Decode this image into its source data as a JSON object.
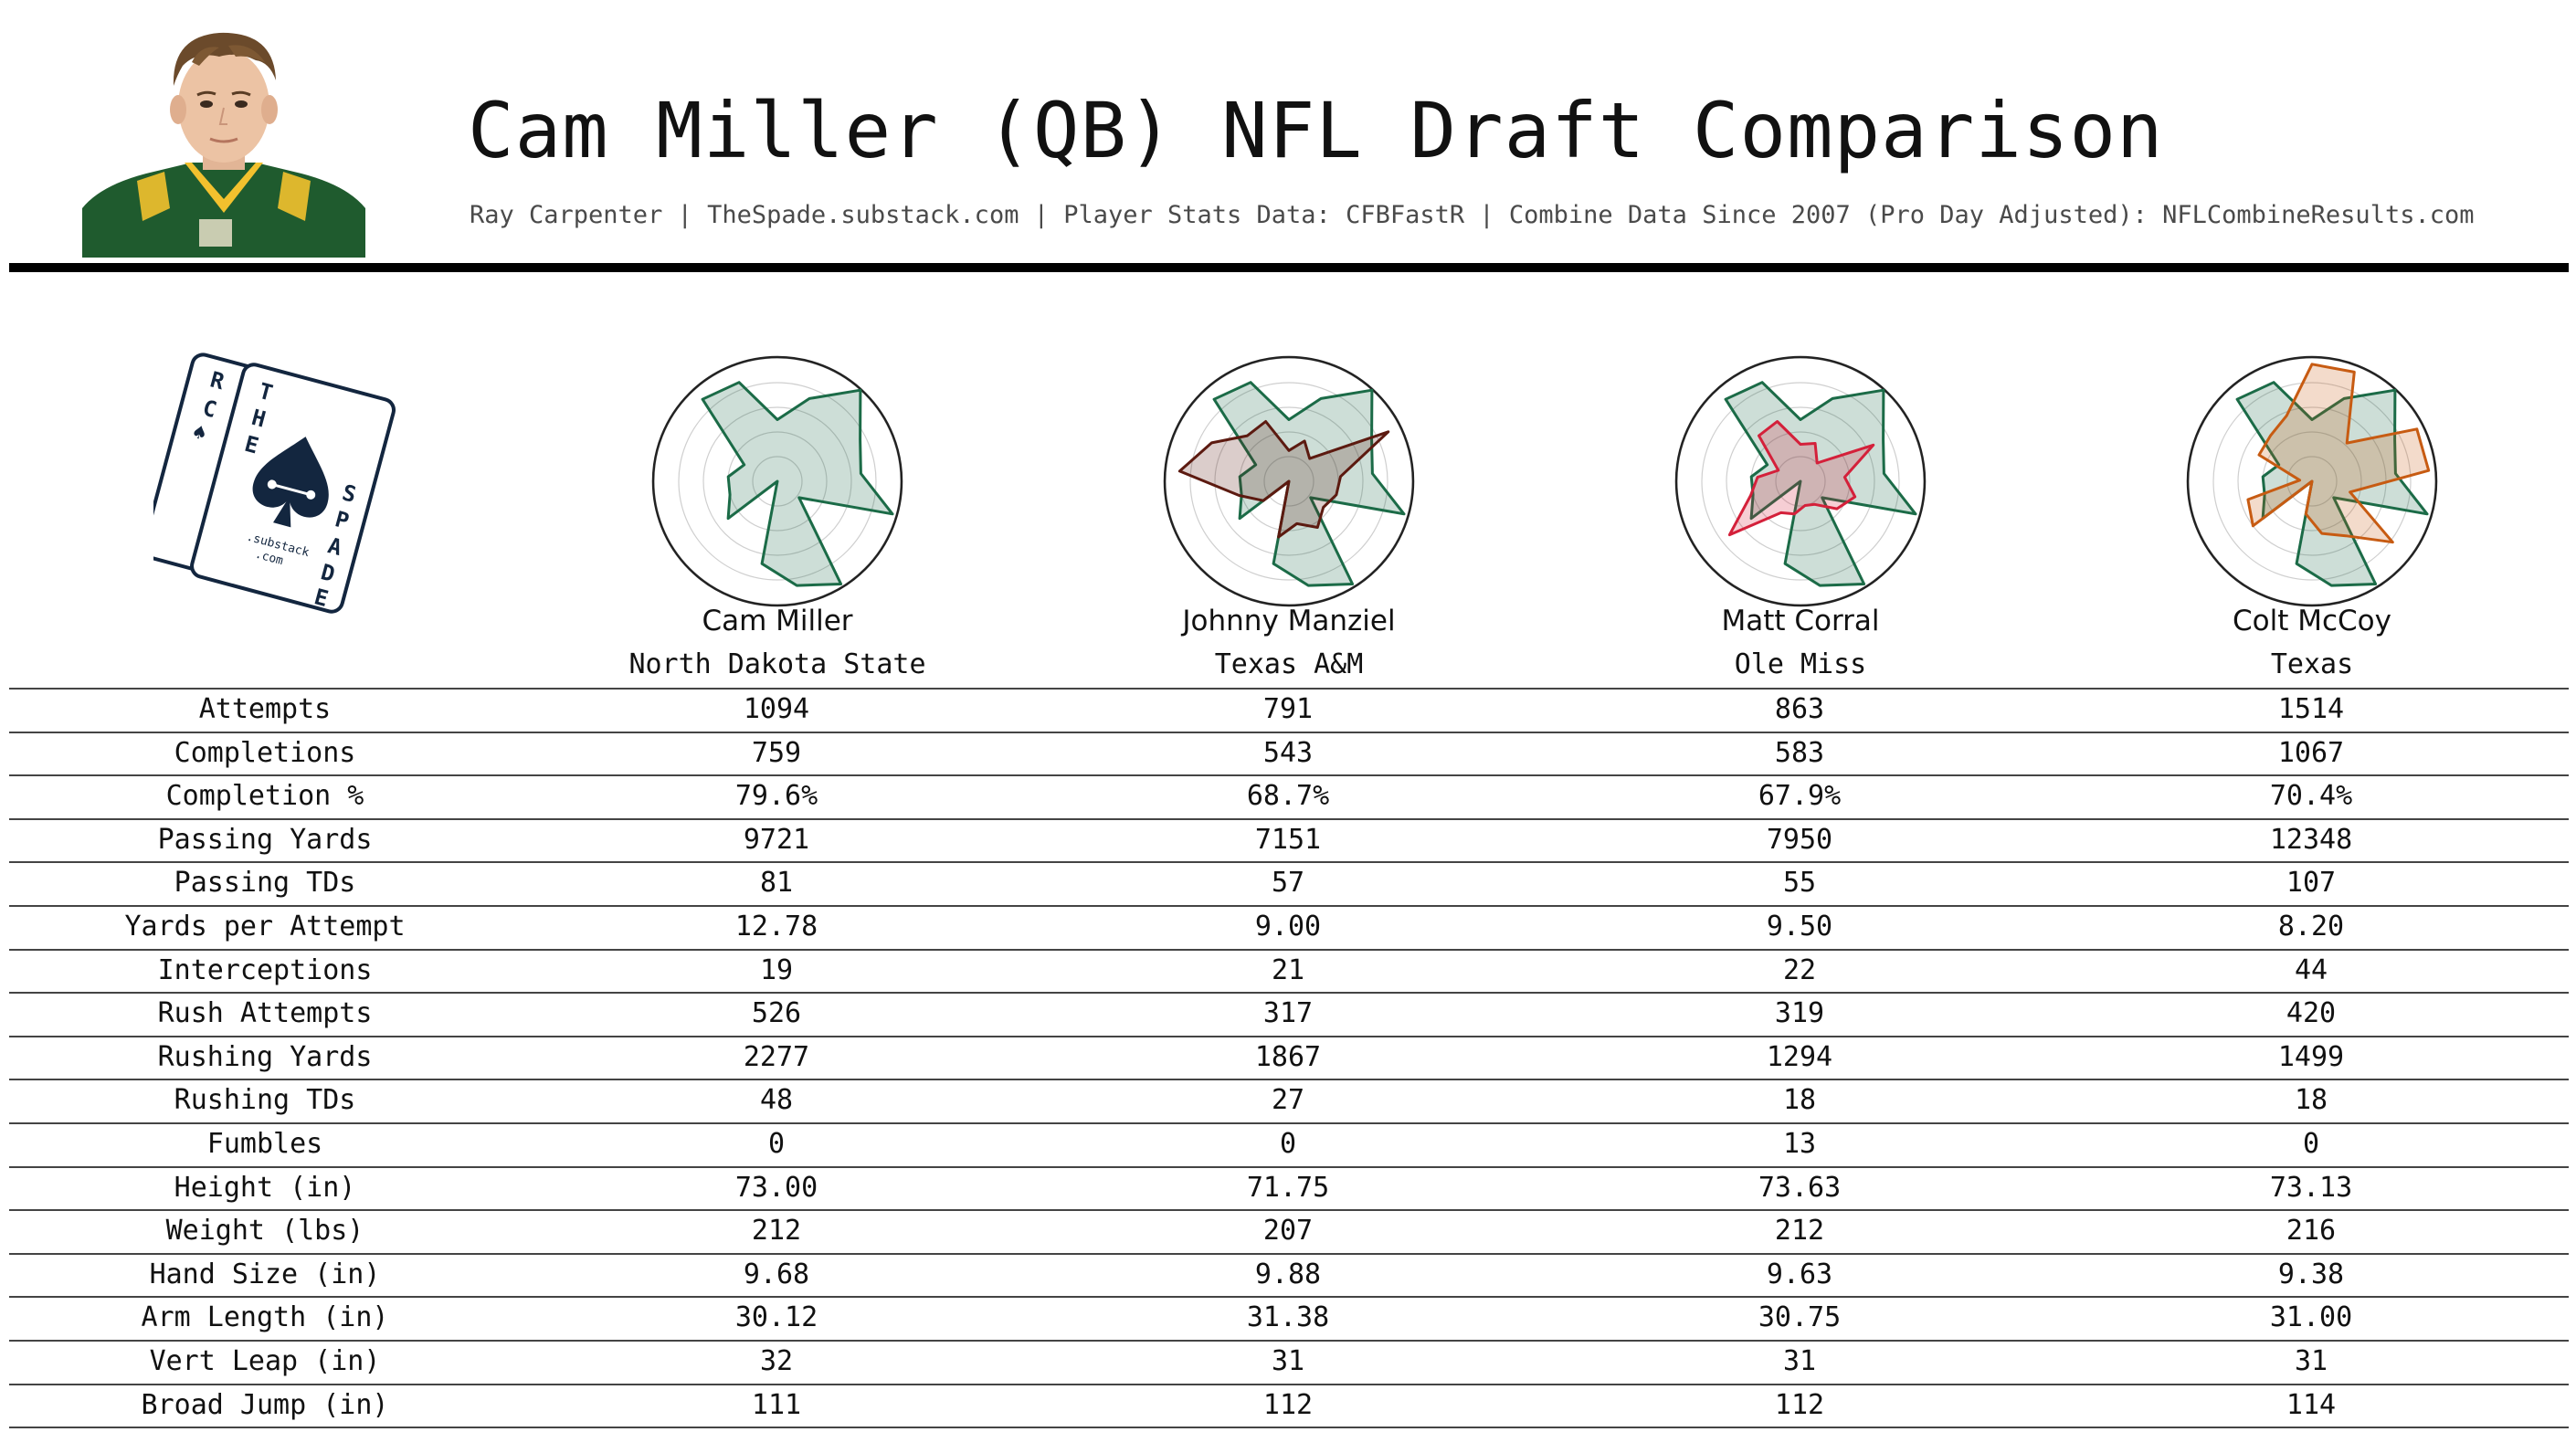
{
  "title": "Cam Miller (QB) NFL Draft Comparison",
  "subtitle": "Ray Carpenter | TheSpade.substack.com | Player Stats Data: CFBFastR | Combine Data Since 2007 (Pro Day Adjusted): NFLCombineResults.com",
  "logo": {
    "card_letters": [
      "R",
      "C",
      "T",
      "H",
      "E",
      "S",
      "P",
      "A",
      "D",
      "E"
    ],
    "tagline": ".substack",
    "tagline2": ".com"
  },
  "colors": {
    "cam_miller": "#1b6b47",
    "johnny_manziel": "#5c1a10",
    "matt_corral": "#d4203a",
    "colt_mccoy": "#c75b12",
    "logo_navy": "#13263f"
  },
  "players": [
    {
      "name": "Cam Miller",
      "school": "North Dakota State"
    },
    {
      "name": "Johnny Manziel",
      "school": "Texas A&M"
    },
    {
      "name": "Matt Corral",
      "school": "Ole Miss"
    },
    {
      "name": "Colt McCoy",
      "school": "Texas"
    }
  ],
  "table": {
    "rows": [
      {
        "label": "Attempts",
        "values": [
          "1094",
          "791",
          "863",
          "1514"
        ]
      },
      {
        "label": "Completions",
        "values": [
          "759",
          "543",
          "583",
          "1067"
        ]
      },
      {
        "label": "Completion %",
        "values": [
          "79.6%",
          "68.7%",
          "67.9%",
          "70.4%"
        ]
      },
      {
        "label": "Passing Yards",
        "values": [
          "9721",
          "7151",
          "7950",
          "12348"
        ]
      },
      {
        "label": "Passing TDs",
        "values": [
          "81",
          "57",
          "55",
          "107"
        ]
      },
      {
        "label": "Yards per Attempt",
        "values": [
          "12.78",
          "9.00",
          "9.50",
          "8.20"
        ]
      },
      {
        "label": "Interceptions",
        "values": [
          "19",
          "21",
          "22",
          "44"
        ]
      },
      {
        "label": "Rush Attempts",
        "values": [
          "526",
          "317",
          "319",
          "420"
        ]
      },
      {
        "label": "Rushing Yards",
        "values": [
          "2277",
          "1867",
          "1294",
          "1499"
        ]
      },
      {
        "label": "Rushing TDs",
        "values": [
          "48",
          "27",
          "18",
          "18"
        ]
      },
      {
        "label": "Fumbles",
        "values": [
          "0",
          "0",
          "13",
          "0"
        ]
      },
      {
        "label": "Height (in)",
        "values": [
          "73.00",
          "71.75",
          "73.63",
          "73.13"
        ]
      },
      {
        "label": "Weight (lbs)",
        "values": [
          "212",
          "207",
          "212",
          "216"
        ]
      },
      {
        "label": "Hand Size (in)",
        "values": [
          "9.68",
          "9.88",
          "9.63",
          "9.38"
        ]
      },
      {
        "label": "Arm Length (in)",
        "values": [
          "30.12",
          "31.38",
          "30.75",
          "31.00"
        ]
      },
      {
        "label": "Vert Leap (in)",
        "values": [
          "32",
          "31",
          "31",
          "31"
        ]
      },
      {
        "label": "Broad Jump (in)",
        "values": [
          "111",
          "112",
          "112",
          "114"
        ]
      }
    ]
  },
  "chart_data": {
    "type": "radar",
    "radial_max": 1.0,
    "rings": 5,
    "grid": true,
    "axes_count": 17,
    "series": [
      {
        "name": "Cam Miller",
        "color": "#1b6b47",
        "values": [
          0.5,
          0.72,
          1.0,
          0.75,
          0.68,
          0.97,
          0.22,
          0.98,
          0.86,
          0.68,
          0.0,
          0.5,
          0.4,
          0.4,
          0.3,
          0.9,
          0.86
        ]
      },
      {
        "name": "Johnny Manziel",
        "color": "#5c1a10",
        "values": [
          0.25,
          0.35,
          0.25,
          0.9,
          0.42,
          0.4,
          0.35,
          0.44,
          0.35,
          0.46,
          0.0,
          0.26,
          0.42,
          0.89,
          0.7,
          0.5,
          0.52
        ]
      },
      {
        "name": "Matt Corral",
        "color": "#d4203a",
        "values": [
          0.3,
          0.33,
          0.2,
          0.66,
          0.36,
          0.46,
          0.37,
          0.22,
          0.2,
          0.27,
          0.3,
          0.72,
          0.42,
          0.35,
          0.2,
          0.5,
          0.52
        ]
      },
      {
        "name": "Colt McCoy",
        "color": "#c75b12",
        "values": [
          0.95,
          0.95,
          0.42,
          0.95,
          0.95,
          0.32,
          0.82,
          0.52,
          0.43,
          0.27,
          0.0,
          0.6,
          0.54,
          0.1,
          0.48,
          0.5,
          0.57
        ]
      }
    ],
    "comparisons": [
      {
        "base": "Cam Miller",
        "compare": null
      },
      {
        "base": "Cam Miller",
        "compare": "Johnny Manziel"
      },
      {
        "base": "Cam Miller",
        "compare": "Matt Corral"
      },
      {
        "base": "Cam Miller",
        "compare": "Colt McCoy"
      }
    ]
  }
}
